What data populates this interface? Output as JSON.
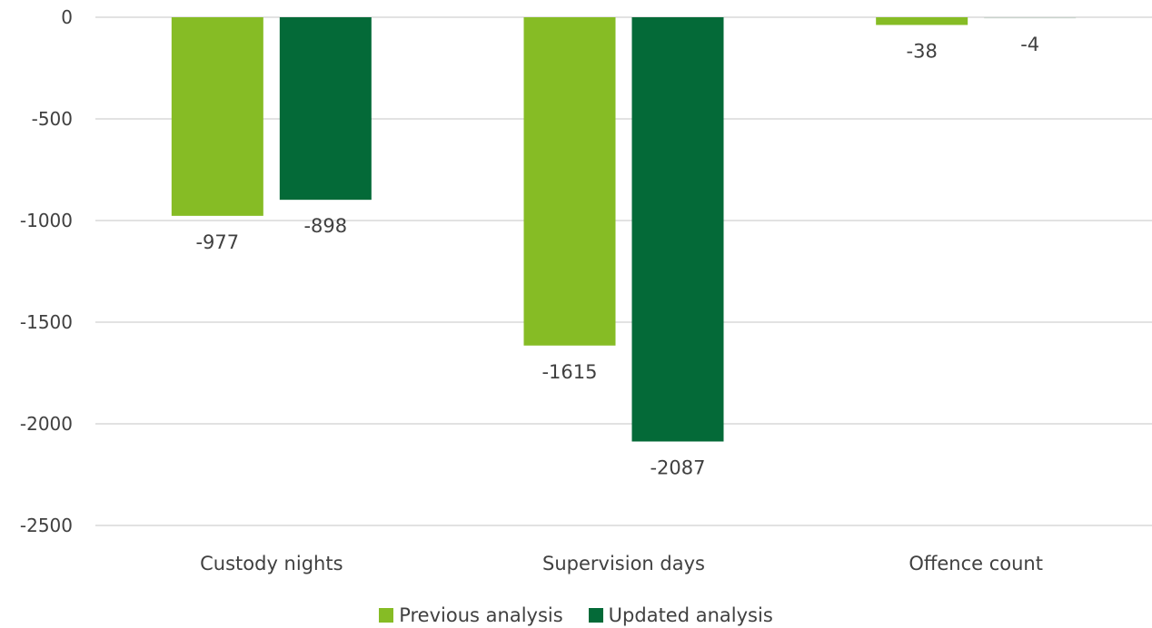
{
  "chart_data": {
    "type": "bar",
    "categories": [
      "Custody nights",
      "Supervision days",
      "Offence count"
    ],
    "series": [
      {
        "name": "Previous analysis",
        "values": [
          -977,
          -1615,
          -38
        ],
        "color": "#86bc25"
      },
      {
        "name": "Updated analysis",
        "values": [
          -898,
          -2087,
          -4
        ],
        "color": "#046a38"
      }
    ],
    "y_ticks": [
      0,
      -500,
      -1000,
      -1500,
      -2000,
      -2500
    ],
    "ylim": [
      -2500,
      0
    ],
    "grid": true,
    "legend_position": "bottom-center",
    "title": "",
    "xlabel": "",
    "ylabel": ""
  }
}
